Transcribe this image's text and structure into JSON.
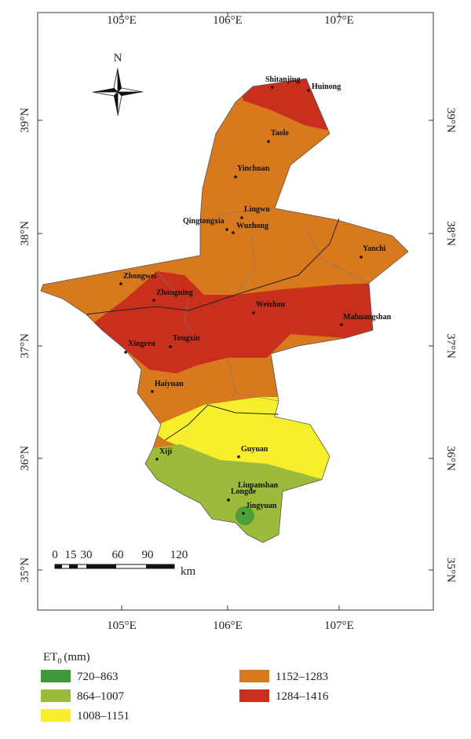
{
  "map": {
    "lon_labels": [
      "105°E",
      "106°E",
      "107°E"
    ],
    "lat_labels": [
      "39°N",
      "38°N",
      "37°N",
      "36°N",
      "35°N"
    ],
    "north_label": "N",
    "scale_bar": {
      "labels": [
        "0",
        "15",
        "30",
        "60",
        "90",
        "120"
      ],
      "unit": "km"
    },
    "cities": [
      "Shitanjing",
      "Huinong",
      "Taole",
      "Yinchuan",
      "Lingwu",
      "Qingtongxia",
      "Wuzhong",
      "Yanchi",
      "Zhongwei",
      "Zhongning",
      "Weizhou",
      "Mahuangshan",
      "Xingren",
      "Tongxin",
      "Haiyuan",
      "Guyuan",
      "Xiji",
      "Liupanshan",
      "Longde",
      "Jingyuan"
    ],
    "legend": {
      "title": "ET",
      "title_sub": "0",
      "title_unit": "(mm)",
      "items": [
        {
          "label": "720–863",
          "color": "#3f9a3a"
        },
        {
          "label": "864–1007",
          "color": "#9dbb3a"
        },
        {
          "label": "1008–1151",
          "color": "#f7ef2c"
        },
        {
          "label": "1152–1283",
          "color": "#d9791e"
        },
        {
          "label": "1284–1416",
          "color": "#c8301d"
        }
      ]
    }
  }
}
